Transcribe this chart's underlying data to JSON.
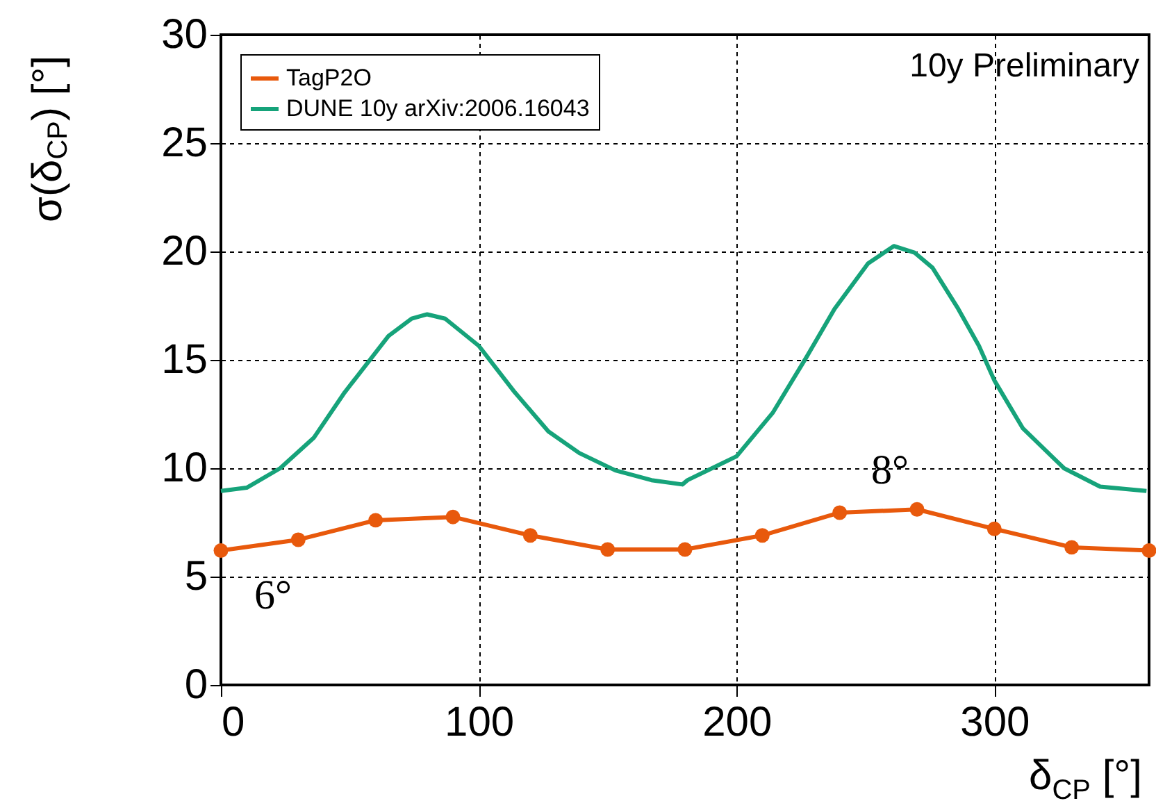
{
  "chart_data": {
    "type": "line",
    "xlabel": "δ$_{CP}$ [°]",
    "ylabel": "σ(δ$_{CP}$) [°]",
    "xlim": [
      0,
      360
    ],
    "xticks": [
      0,
      100,
      200,
      300
    ],
    "ylim": [
      0,
      30
    ],
    "yticks": [
      0,
      5,
      10,
      15,
      20,
      25,
      30
    ],
    "grid": true,
    "legend": "top left",
    "series": [
      {
        "name": "TagP2O",
        "color": "#e8590c",
        "marker": "circle",
        "x": [
          0,
          30,
          60,
          90,
          120,
          150,
          180,
          210,
          240,
          270,
          300,
          330,
          360
        ],
        "values": [
          6.2,
          6.7,
          7.6,
          7.75,
          6.9,
          6.25,
          6.25,
          6.9,
          7.95,
          8.1,
          7.2,
          6.35,
          6.2
        ]
      },
      {
        "name": "DUNE 10y arXiv:2006.16043",
        "color": "#16a37a",
        "x": [
          0,
          10,
          23,
          36,
          48,
          65,
          74,
          80,
          87,
          100,
          114,
          127,
          139,
          153,
          167,
          179,
          181,
          200,
          214,
          227,
          238,
          251,
          261,
          269,
          276,
          286,
          294,
          300,
          311,
          327,
          341,
          359
        ],
        "values": [
          8.95,
          9.1,
          10,
          11.4,
          13.5,
          16.1,
          16.9,
          17.1,
          16.9,
          15.65,
          13.5,
          11.7,
          10.7,
          9.9,
          9.45,
          9.25,
          9.45,
          10.55,
          12.55,
          15.1,
          17.35,
          19.45,
          20.25,
          19.95,
          19.25,
          17.35,
          15.65,
          14.05,
          11.85,
          10,
          9.15,
          8.95
        ]
      }
    ],
    "annotations": [
      "6°",
      "8°",
      "10y Preliminary"
    ]
  }
}
